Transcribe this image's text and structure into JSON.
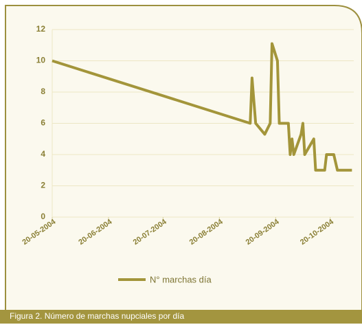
{
  "chart_data": {
    "type": "line",
    "caption": "Figura 2.  Número de marchas nupciales por día",
    "x": [
      "2004-05-20",
      "2004-09-06",
      "2004-09-07",
      "2004-09-09",
      "2004-09-14",
      "2004-09-17",
      "2004-09-18",
      "2004-09-21",
      "2004-09-22",
      "2004-09-27",
      "2004-09-28",
      "2004-09-29",
      "2004-09-30",
      "2004-10-04",
      "2004-10-05",
      "2004-10-06",
      "2004-10-11",
      "2004-10-12",
      "2004-10-17",
      "2004-10-18",
      "2004-10-22",
      "2004-10-24",
      "2004-11-01"
    ],
    "series": [
      {
        "name": "N° marchas día",
        "color": "#a3953a",
        "values": [
          10,
          6,
          8.9,
          6,
          5.3,
          6,
          11.1,
          10,
          6,
          6,
          4,
          5,
          4,
          5.3,
          6,
          4,
          5,
          3,
          3,
          4,
          4,
          3,
          3
        ]
      }
    ],
    "xlim": [
      "2004-05-20",
      "2004-11-02"
    ],
    "xticks": [
      {
        "value": "2004-05-20",
        "label": "20-05-2004"
      },
      {
        "value": "2004-06-20",
        "label": "20-06-2004"
      },
      {
        "value": "2004-07-20",
        "label": "20-07-2004"
      },
      {
        "value": "2004-08-20",
        "label": "20-08-2004"
      },
      {
        "value": "2004-09-20",
        "label": "20-09-2004"
      },
      {
        "value": "2004-10-20",
        "label": "20-10-2004"
      }
    ],
    "ylim": [
      0,
      12
    ],
    "yticks": [
      0,
      2,
      4,
      6,
      8,
      10,
      12
    ],
    "grid": true
  }
}
